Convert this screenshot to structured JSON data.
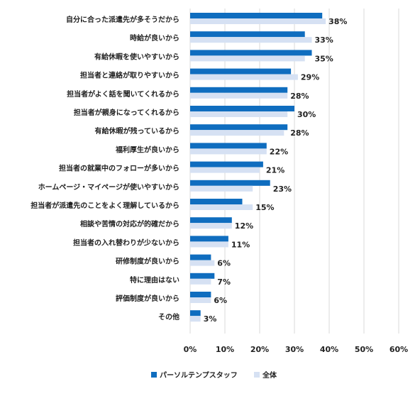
{
  "chart_data": {
    "type": "bar",
    "orientation": "horizontal",
    "categories": [
      "自分に合った派遣先が多そうだから",
      "時給が良いから",
      "有給休暇を使いやすいから",
      "担当者と連絡が取りやすいから",
      "担当者がよく話を聞いてくれるから",
      "担当者が親身になってくれるから",
      "有給休暇が残っているから",
      "福利厚生が良いから",
      "担当者の就業中のフォローが多いから",
      "ホームページ・マイページが使いやすいから",
      "担当者が派遣先のことをよく理解しているから",
      "相談や苦情の対応が的確だから",
      "担当者の入れ替わりが少ないから",
      "研修制度が良いから",
      "特に理由はない",
      "評価制度が良いから",
      "その他"
    ],
    "series": [
      {
        "name": "パーソルテンプスタッフ",
        "color": "#0f6dbf",
        "values": [
          38,
          33,
          35,
          29,
          28,
          30,
          28,
          22,
          21,
          23,
          15,
          12,
          11,
          6,
          7,
          6,
          3
        ]
      },
      {
        "name": "全体",
        "color": "#d6e1f3",
        "values": [
          39,
          35,
          33,
          31,
          28,
          28,
          27,
          22,
          20,
          18,
          18,
          12,
          11,
          7,
          6,
          6,
          3
        ]
      }
    ],
    "value_labels": [
      "38%",
      "33%",
      "35%",
      "29%",
      "28%",
      "30%",
      "28%",
      "22%",
      "21%",
      "23%",
      "15%",
      "12%",
      "11%",
      "6%",
      "7%",
      "6%",
      "3%"
    ],
    "x_ticks": [
      "0%",
      "10%",
      "20%",
      "30%",
      "40%",
      "50%",
      "60%"
    ],
    "xlim": [
      0,
      60
    ],
    "grid": true,
    "legend_position": "bottom"
  }
}
